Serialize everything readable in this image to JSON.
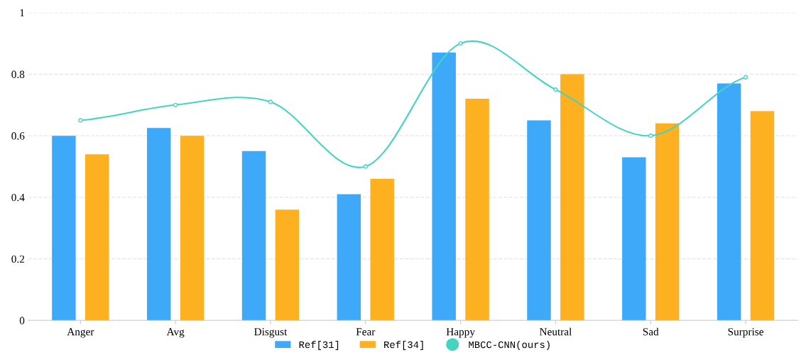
{
  "chart_data": {
    "type": "bar",
    "categories": [
      "Anger",
      "Avg",
      "Disgust",
      "Fear",
      "Happy",
      "Neutral",
      "Sad",
      "Surprise"
    ],
    "series": [
      {
        "name": "Ref[31]",
        "color": "#3ea9f9",
        "values": [
          0.6,
          0.625,
          0.55,
          0.41,
          0.87,
          0.65,
          0.53,
          0.77
        ]
      },
      {
        "name": "Ref[34]",
        "color": "#fdb020",
        "values": [
          0.54,
          0.6,
          0.36,
          0.46,
          0.72,
          0.8,
          0.64,
          0.68
        ]
      },
      {
        "name": "MBCC-CNN(ours)",
        "type": "line",
        "color": "#45d3c3",
        "marker": "circle",
        "values": [
          0.65,
          0.7,
          0.71,
          0.5,
          0.9,
          0.75,
          0.6,
          0.79
        ]
      }
    ],
    "ylim": [
      0,
      1
    ],
    "yticks": [
      0,
      0.2,
      0.4,
      0.6,
      0.8,
      1
    ],
    "grid": "y",
    "legend": "bottom"
  }
}
